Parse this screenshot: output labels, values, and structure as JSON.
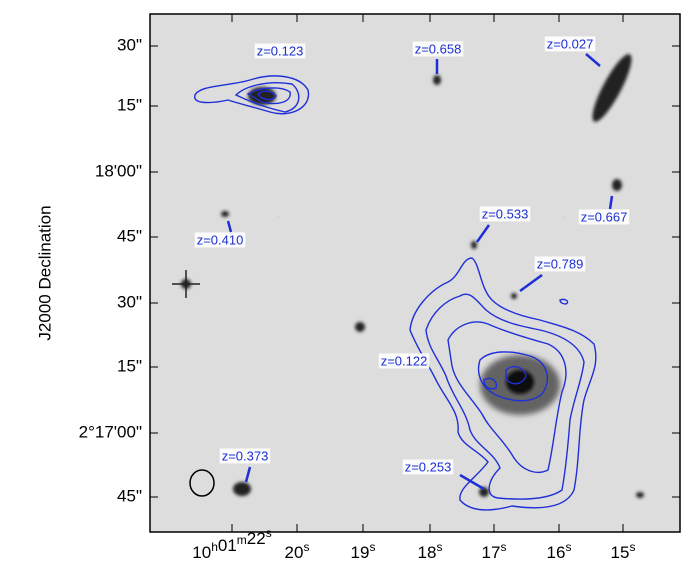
{
  "y_axis": {
    "title": "J2000 Declination",
    "ticks": [
      "30\"",
      "15\"",
      "18'00\"",
      "45\"",
      "30\"",
      "15\"",
      "2°17'00\"",
      "45\""
    ]
  },
  "x_axis": {
    "ticks": [
      [
        {
          "text": "10",
          "sup": "h"
        },
        {
          "text": "01",
          "sup": "m"
        },
        {
          "text": "22",
          "sup": "s"
        }
      ],
      [
        {
          "text": "20",
          "sup": "s"
        }
      ],
      [
        {
          "text": "19",
          "sup": "s"
        }
      ],
      [
        {
          "text": "18",
          "sup": "s"
        }
      ],
      [
        {
          "text": "17",
          "sup": "s"
        }
      ],
      [
        {
          "text": "16",
          "sup": "s"
        }
      ],
      [
        {
          "text": "15",
          "sup": "s"
        }
      ]
    ]
  },
  "annotations": [
    "z=0.123",
    "z=0.658",
    "z=0.027",
    "z=0.410",
    "z=0.533",
    "z=0.667",
    "z=0.789",
    "z=0.122",
    "z=0.253",
    "z=0.373"
  ]
}
